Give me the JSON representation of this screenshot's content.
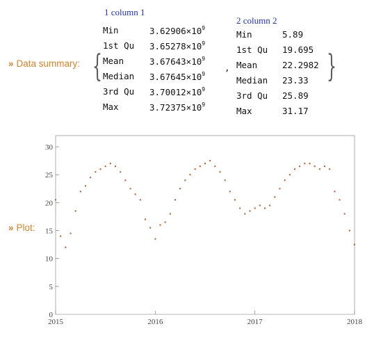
{
  "summary_label": "Data summary:",
  "plot_label": "Plot:",
  "chevron": "»",
  "col1": {
    "title": "1 column 1",
    "rows": [
      {
        "stat": "Min",
        "mant": "3.62906",
        "exp": "9"
      },
      {
        "stat": "1st Qu",
        "mant": "3.65278",
        "exp": "9"
      },
      {
        "stat": "Mean",
        "mant": "3.67643",
        "exp": "9"
      },
      {
        "stat": "Median",
        "mant": "3.67645",
        "exp": "9"
      },
      {
        "stat": "3rd Qu",
        "mant": "3.70012",
        "exp": "9"
      },
      {
        "stat": "Max",
        "mant": "3.72375",
        "exp": "9"
      }
    ]
  },
  "col2": {
    "title": "2 column 2",
    "rows": [
      {
        "stat": "Min",
        "value": "5.89"
      },
      {
        "stat": "1st Qu",
        "value": "19.695"
      },
      {
        "stat": "Mean",
        "value": "22.2982"
      },
      {
        "stat": "Median",
        "value": "23.33"
      },
      {
        "stat": "3rd Qu",
        "value": "25.89"
      },
      {
        "stat": "Max",
        "value": "31.17"
      }
    ]
  },
  "times_sign": "×10",
  "separator": ",",
  "chart_data": {
    "type": "scatter",
    "title": "",
    "xlabel": "",
    "ylabel": "",
    "xlim": [
      2015,
      2018
    ],
    "ylim": [
      0,
      32
    ],
    "xticks": [
      "2015",
      "2016",
      "2017",
      "2018"
    ],
    "yticks": [
      "0",
      "5",
      "10",
      "15",
      "20",
      "25",
      "30"
    ],
    "marker_color": "#c8501e",
    "series": [
      {
        "x": [
          2015.0,
          2015.05,
          2015.1,
          2015.15,
          2015.2,
          2015.25,
          2015.3,
          2015.35,
          2015.4,
          2015.45,
          2015.5,
          2015.55,
          2015.6,
          2015.65,
          2015.7,
          2015.75,
          2015.8,
          2015.85,
          2015.9,
          2015.95,
          2016.0,
          2016.05,
          2016.1,
          2016.15,
          2016.2,
          2016.25,
          2016.3,
          2016.35,
          2016.4,
          2016.45,
          2016.5,
          2016.55,
          2016.6,
          2016.65,
          2016.7,
          2016.75,
          2016.8,
          2016.85,
          2016.9,
          2016.95,
          2017.0,
          2017.05,
          2017.1,
          2017.15,
          2017.2,
          2017.25,
          2017.3,
          2017.35,
          2017.4,
          2017.45,
          2017.5,
          2017.55,
          2017.6,
          2017.65,
          2017.7,
          2017.75,
          2017.8,
          2017.85,
          2017.9,
          2017.95,
          2018.0
        ],
        "y": [
          20.5,
          14.0,
          12.0,
          14.5,
          18.5,
          22.0,
          23.0,
          24.5,
          25.5,
          26.0,
          26.5,
          27.0,
          26.5,
          25.5,
          24.0,
          22.5,
          21.5,
          20.5,
          17.0,
          15.5,
          13.5,
          16.0,
          16.5,
          18.0,
          20.5,
          22.5,
          24.0,
          25.0,
          26.0,
          26.5,
          27.0,
          27.5,
          26.5,
          25.5,
          24.0,
          22.0,
          20.5,
          19.0,
          18.0,
          18.5,
          19.0,
          19.5,
          19.0,
          19.5,
          21.0,
          22.5,
          24.0,
          25.0,
          26.0,
          26.5,
          27.0,
          27.0,
          26.5,
          26.0,
          26.5,
          26.0,
          22.0,
          20.5,
          18.0,
          15.0,
          12.5
        ]
      }
    ]
  }
}
